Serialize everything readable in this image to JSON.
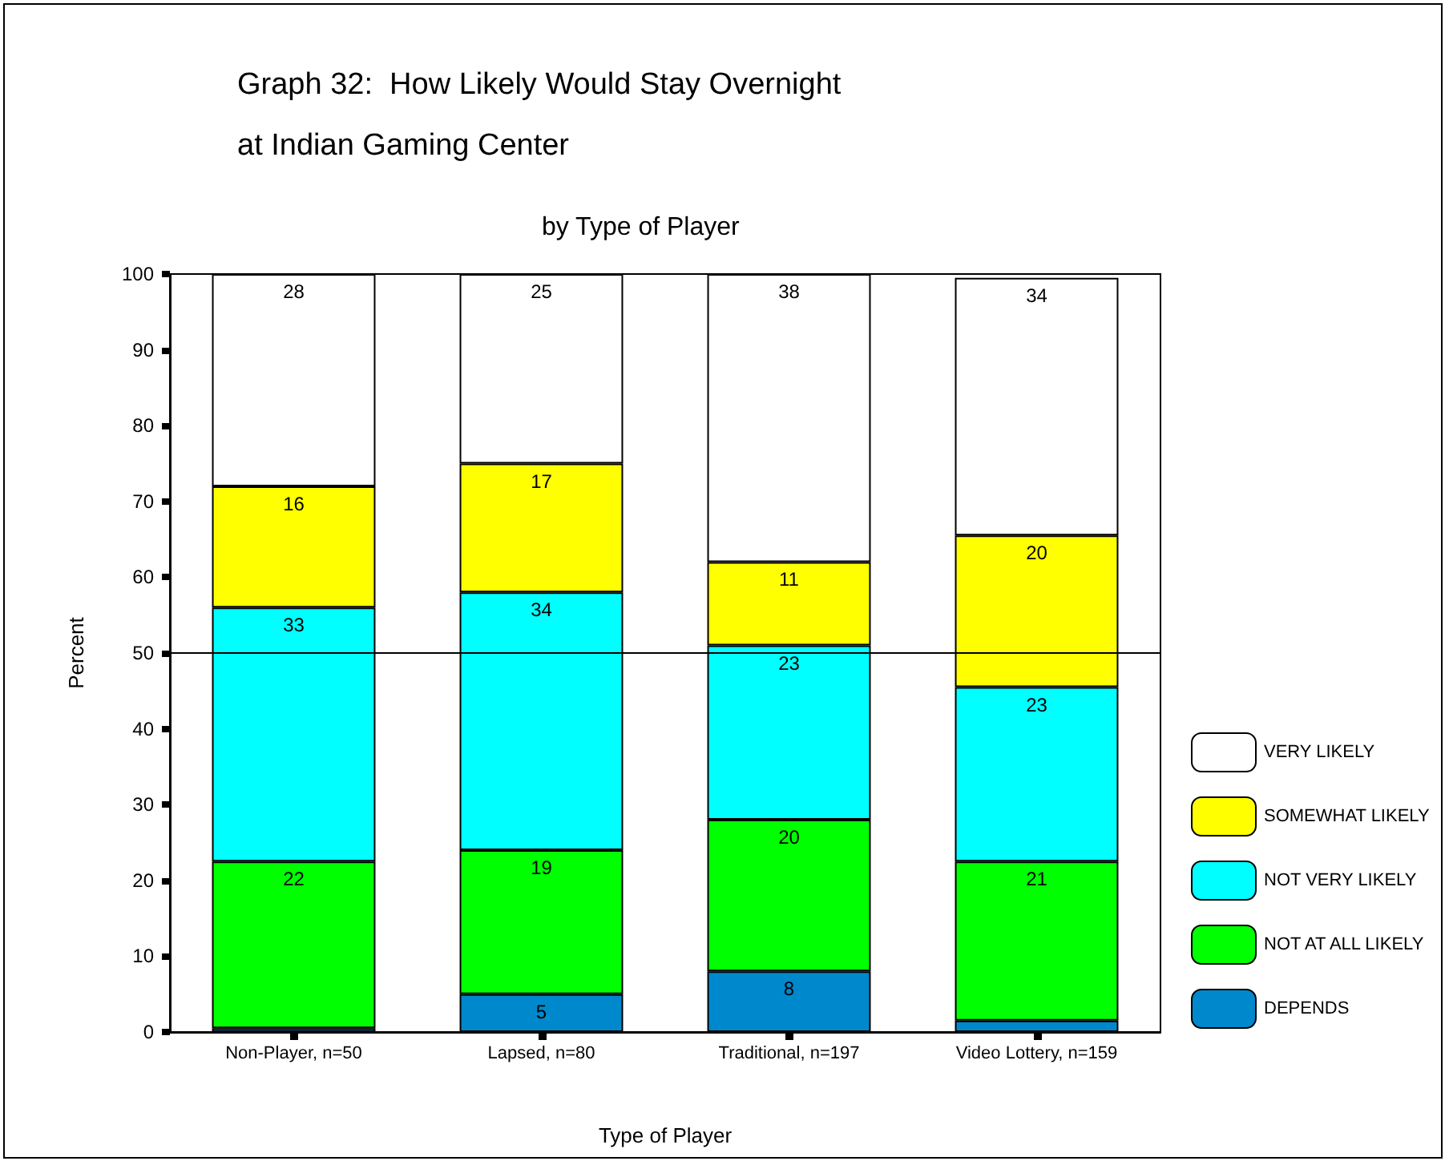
{
  "chart_data": {
    "type": "bar",
    "title": "Graph 32:  How Likely Would Stay Overnight\nat Indian Gaming Center",
    "subtitle": "by Type of Player",
    "xlabel": "Type of Player",
    "ylabel": "Percent",
    "categories": [
      "Non-Player, n=50",
      "Lapsed, n=80",
      "Traditional, n=197",
      "Video Lottery, n=159"
    ],
    "stacked": true,
    "series": [
      {
        "name": "DEPENDS",
        "color": "#0088cc",
        "values": [
          0.5,
          5,
          8,
          1.5
        ],
        "value_labels": [
          null,
          "5",
          "8",
          null
        ]
      },
      {
        "name": "NOT AT ALL LIKELY",
        "color": "#00ff00",
        "values": [
          22,
          19,
          20,
          21
        ],
        "value_labels": [
          "22",
          "19",
          "20",
          "21"
        ]
      },
      {
        "name": "NOT VERY LIKELY",
        "color": "#00ffff",
        "values": [
          33.5,
          34,
          23,
          23
        ],
        "value_labels": [
          "33",
          "34",
          "23",
          "23"
        ]
      },
      {
        "name": "SOMEWHAT LIKELY",
        "color": "#ffff00",
        "values": [
          16,
          17,
          11,
          20
        ],
        "value_labels": [
          "16",
          "17",
          "11",
          "20"
        ]
      },
      {
        "name": "VERY LIKELY",
        "color": "#ffffff",
        "values": [
          28,
          25,
          38,
          34
        ],
        "value_labels": [
          "28",
          "25",
          "38",
          "34"
        ]
      }
    ],
    "ylim": [
      0,
      100
    ],
    "yticks": [
      0,
      10,
      20,
      30,
      40,
      50,
      60,
      70,
      80,
      90,
      100
    ],
    "ref_lines": [
      {
        "axis": "y",
        "value": 50,
        "color": "#000000"
      }
    ],
    "grid": false,
    "legend": "bottom right"
  }
}
